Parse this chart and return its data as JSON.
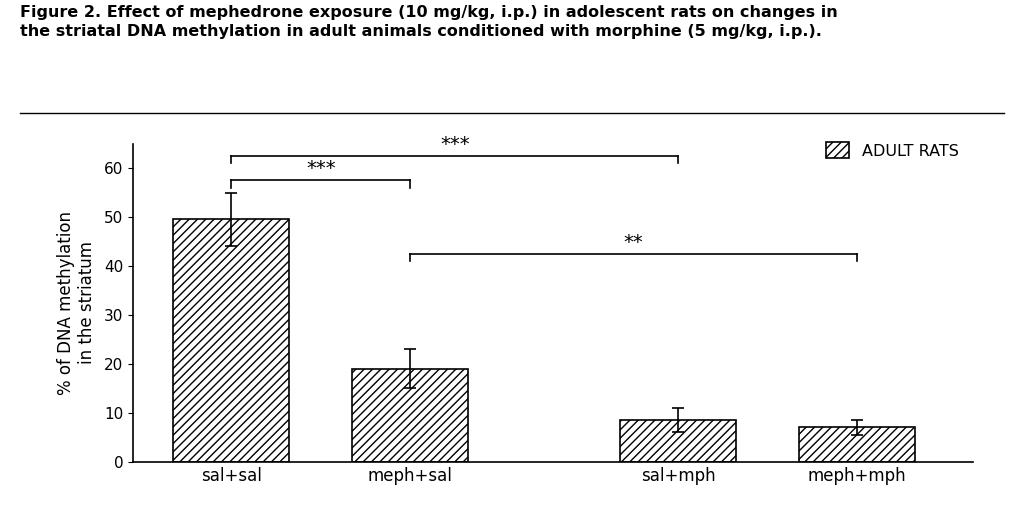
{
  "categories": [
    "sal+sal",
    "meph+sal",
    "sal+mph",
    "meph+mph"
  ],
  "values": [
    49.5,
    19.0,
    8.5,
    7.0
  ],
  "errors": [
    5.5,
    4.0,
    2.5,
    1.5
  ],
  "hatch": "////",
  "ylim": [
    0,
    65
  ],
  "yticks": [
    0,
    10,
    20,
    30,
    40,
    50,
    60
  ],
  "ylabel": "% of DNA methylation\nin the striatum",
  "title_line1": "Figure 2. Effect of mephedrone exposure (10 mg/kg, i.p.) in adolescent rats on changes in",
  "title_line2": "the striatal DNA methylation in adult animals conditioned with morphine (5 mg/kg, i.p.).",
  "legend_label": "ADULT RATS",
  "sig1_label": "***",
  "sig2_label": "***",
  "sig3_label": "**",
  "background_color": "#ffffff",
  "bar_positions": [
    0,
    1,
    2.5,
    3.5
  ],
  "bar_width": 0.65,
  "fig_width": 10.24,
  "fig_height": 5.13
}
